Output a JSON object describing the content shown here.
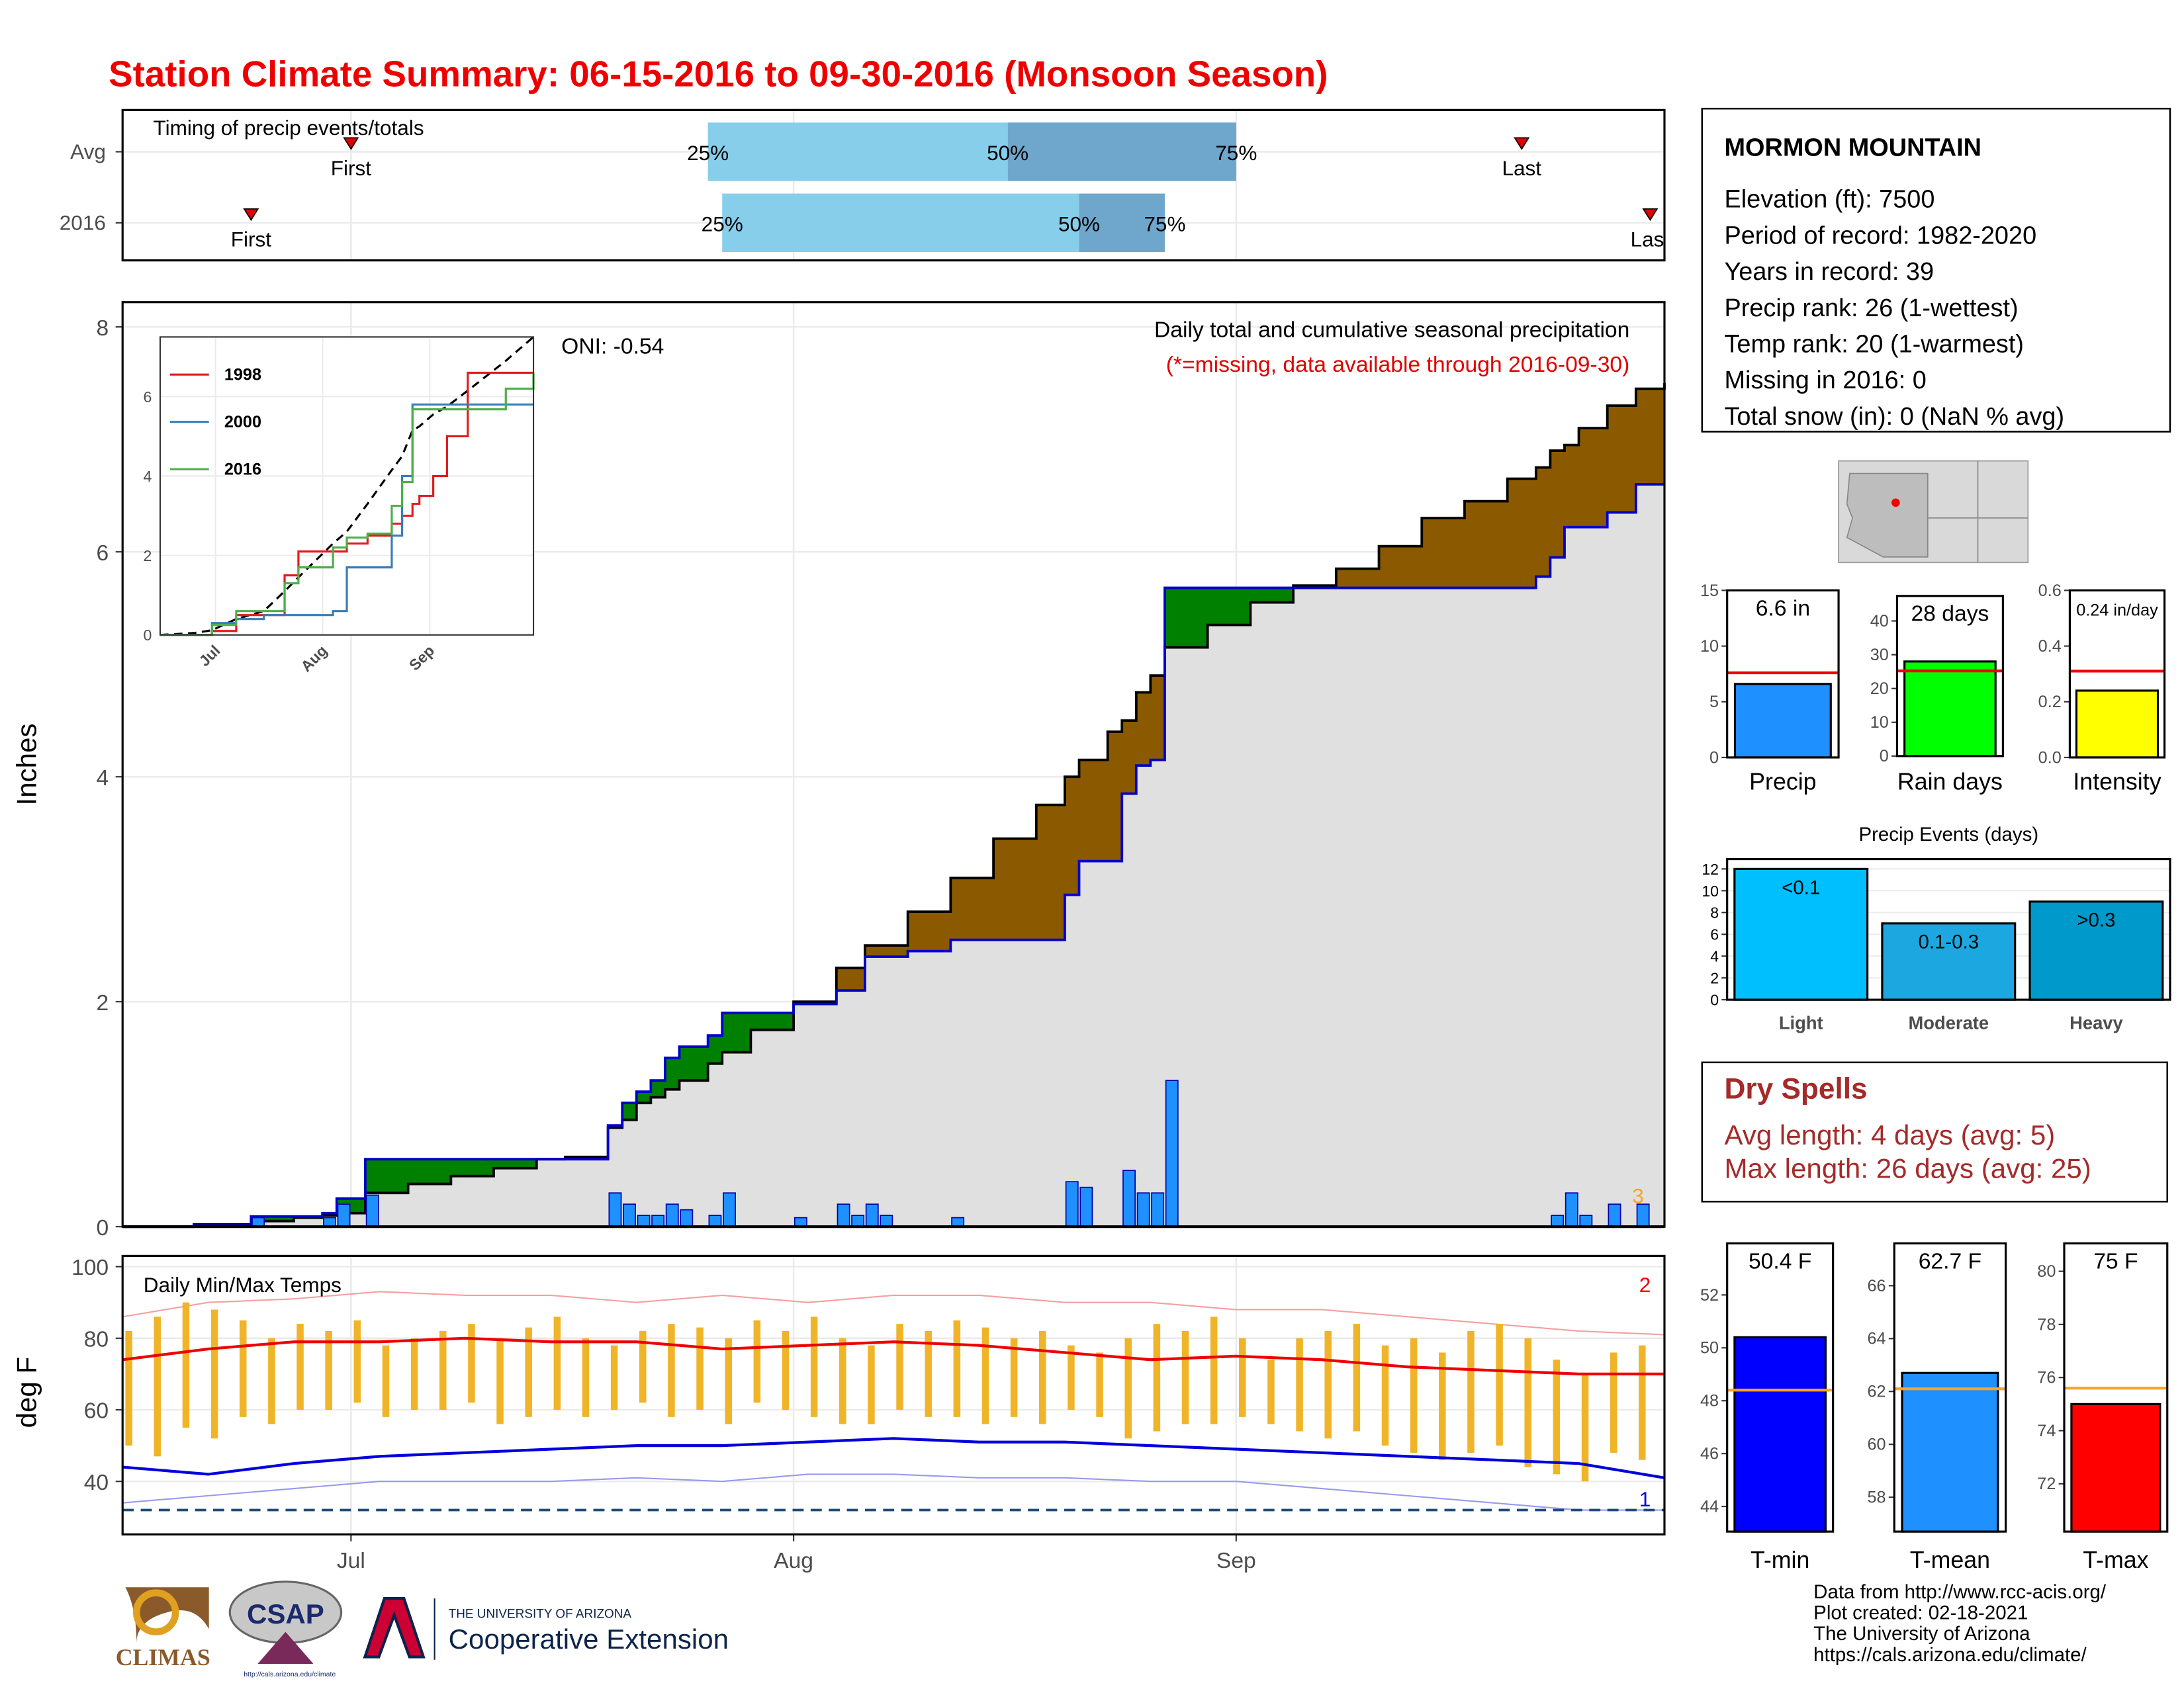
{
  "title": "Station Climate Summary: 06-15-2016 to 09-30-2016 (Monsoon Season)",
  "chart_data": [
    {
      "type": "timing",
      "title": "Timing of precip events/totals",
      "categories": [
        "Avg",
        "2016"
      ],
      "values": [
        [
          16,
          41,
          62,
          78,
          98
        ],
        [
          9,
          42,
          67,
          73,
          107
        ]
      ],
      "marker_labels": [
        "First",
        "25%",
        "50%",
        "75%",
        "Last"
      ],
      "colors": [
        "#87ceeb",
        "#6fa6cc"
      ],
      "marker_color": "#e00000",
      "xlim": [
        0,
        108
      ],
      "xgrid": [
        16,
        47,
        78
      ],
      "grid": true
    },
    {
      "type": "step",
      "title": "Daily total and cumulative seasonal precipitation",
      "subtitle": "(*=missing, data available through 2016-09-30)",
      "ylabel": "Inches",
      "annotation": "ONI: -0.54",
      "count_label": 3,
      "x": [
        0,
        5,
        9,
        12,
        14,
        15,
        17,
        20,
        23,
        26,
        29,
        31,
        34,
        35,
        36,
        37,
        38,
        39,
        41,
        42,
        44,
        47,
        50,
        52,
        55,
        58,
        61,
        64,
        66,
        67,
        69,
        70,
        71,
        72,
        73,
        76,
        79,
        82,
        85,
        88,
        91,
        94,
        97,
        99,
        100,
        101,
        102,
        104,
        106,
        108
      ],
      "values": [
        0,
        0.01,
        0.09,
        0.09,
        0.12,
        0.25,
        0.6,
        0.6,
        0.6,
        0.6,
        0.6,
        0.6,
        0.9,
        1.1,
        1.2,
        1.3,
        1.5,
        1.6,
        1.7,
        1.9,
        1.9,
        1.98,
        2.1,
        2.4,
        2.45,
        2.55,
        2.55,
        2.55,
        2.95,
        3.25,
        3.25,
        3.85,
        4.1,
        4.15,
        5.68,
        5.68,
        5.68,
        5.68,
        5.68,
        5.68,
        5.68,
        5.68,
        5.68,
        5.78,
        5.95,
        6.22,
        6.22,
        6.35,
        6.6,
        6.6
      ],
      "average": [
        0,
        0.02,
        0.05,
        0.08,
        0.1,
        0.12,
        0.3,
        0.38,
        0.45,
        0.52,
        0.6,
        0.62,
        0.88,
        0.95,
        1.1,
        1.15,
        1.22,
        1.3,
        1.45,
        1.55,
        1.75,
        2.0,
        2.3,
        2.5,
        2.8,
        3.1,
        3.45,
        3.75,
        4.0,
        4.15,
        4.4,
        4.5,
        4.75,
        4.9,
        5.15,
        5.35,
        5.55,
        5.7,
        5.85,
        6.05,
        6.3,
        6.45,
        6.65,
        6.75,
        6.9,
        6.95,
        7.1,
        7.3,
        7.45,
        7.5
      ],
      "daily_x": [
        9,
        14,
        15,
        17,
        34,
        35,
        36,
        37,
        38,
        39,
        41,
        42,
        47,
        50,
        51,
        52,
        53,
        58,
        66,
        67,
        70,
        71,
        72,
        73,
        100,
        101,
        102,
        104,
        106
      ],
      "daily": [
        0.08,
        0.08,
        0.2,
        0.28,
        0.3,
        0.2,
        0.1,
        0.1,
        0.2,
        0.15,
        0.1,
        0.3,
        0.08,
        0.2,
        0.1,
        0.2,
        0.1,
        0.08,
        0.4,
        0.35,
        0.5,
        0.3,
        0.3,
        1.3,
        0.1,
        0.3,
        0.1,
        0.2,
        0.2
      ],
      "colors": {
        "above": "#008000",
        "below": "#8b5a00",
        "fill": "#e0e0e0",
        "line": "#0000cc",
        "average": "#000000",
        "bar": "#1e90ff",
        "count": "#f5a623",
        "subtitle": "#e00000"
      },
      "xlim": [
        0,
        108
      ],
      "ylim": [
        0,
        8.22
      ],
      "yticks": [
        0,
        2,
        4,
        6,
        8
      ],
      "xticks": [
        16,
        47,
        78
      ],
      "grid": true
    },
    {
      "type": "line",
      "x": [
        0,
        10,
        15,
        22,
        30,
        36,
        40,
        50,
        54,
        60,
        67,
        70,
        73,
        75,
        79,
        83,
        89,
        100,
        108
      ],
      "series": [
        {
          "name": "1998",
          "color": "#e41a1c",
          "values": [
            0,
            0,
            0.1,
            0.5,
            0.5,
            1.5,
            2.1,
            2.1,
            2.3,
            2.5,
            2.8,
            3.0,
            3.3,
            3.5,
            4.0,
            5.0,
            6.6,
            6.6,
            6.6
          ]
        },
        {
          "name": "2000",
          "color": "#377eb8",
          "values": [
            0,
            0,
            0.3,
            0.4,
            0.5,
            0.5,
            0.5,
            0.6,
            1.7,
            1.7,
            2.5,
            4.0,
            5.8,
            5.8,
            5.8,
            5.8,
            5.8,
            5.8,
            5.8
          ]
        },
        {
          "name": "2016",
          "color": "#4daf4a",
          "values": [
            0,
            0,
            0.25,
            0.6,
            0.6,
            1.3,
            1.7,
            2.2,
            2.45,
            2.55,
            3.25,
            3.85,
            5.68,
            5.68,
            5.68,
            5.68,
            5.68,
            6.2,
            6.6
          ]
        }
      ],
      "average": [
        0,
        0.05,
        0.12,
        0.4,
        0.6,
        1.1,
        1.45,
        2.3,
        2.6,
        3.3,
        4.15,
        4.5,
        5.15,
        5.25,
        5.55,
        5.75,
        6.15,
        6.9,
        7.5
      ],
      "xlim": [
        0,
        108
      ],
      "ylim": [
        0,
        7.5
      ],
      "yticks": [
        0,
        2,
        4,
        6
      ],
      "xticks": [
        {
          "value": 16,
          "label": "Jul"
        },
        {
          "value": 47,
          "label": "Aug"
        },
        {
          "value": 78,
          "label": "Sep"
        }
      ],
      "grid": true
    },
    {
      "type": "range",
      "title": "Daily Min/Max Temps",
      "ylabel": "deg F",
      "x": [
        0,
        2,
        4,
        6,
        8,
        10,
        12,
        14,
        16,
        18,
        20,
        22,
        24,
        26,
        28,
        30,
        32,
        34,
        36,
        38,
        40,
        42,
        44,
        46,
        48,
        50,
        52,
        54,
        56,
        58,
        60,
        62,
        64,
        66,
        68,
        70,
        72,
        74,
        76,
        78,
        80,
        82,
        84,
        86,
        88,
        90,
        92,
        94,
        96,
        98,
        100,
        102,
        104,
        106
      ],
      "highs": [
        82,
        86,
        90,
        88,
        85,
        80,
        84,
        82,
        85,
        78,
        80,
        82,
        84,
        80,
        83,
        86,
        80,
        78,
        82,
        84,
        83,
        80,
        85,
        82,
        86,
        80,
        78,
        84,
        82,
        85,
        83,
        80,
        82,
        78,
        76,
        80,
        84,
        82,
        86,
        80,
        74,
        80,
        82,
        84,
        78,
        80,
        76,
        82,
        84,
        80,
        74,
        70,
        76,
        78
      ],
      "lows": [
        50,
        47,
        55,
        52,
        58,
        56,
        60,
        60,
        62,
        58,
        60,
        60,
        62,
        56,
        58,
        60,
        58,
        60,
        62,
        58,
        60,
        56,
        62,
        60,
        58,
        56,
        56,
        60,
        58,
        58,
        56,
        58,
        56,
        60,
        58,
        52,
        54,
        56,
        56,
        58,
        56,
        54,
        52,
        54,
        50,
        48,
        46,
        48,
        50,
        44,
        42,
        40,
        48,
        46
      ],
      "line_x": [
        0,
        6,
        12,
        18,
        24,
        30,
        36,
        42,
        48,
        54,
        60,
        66,
        72,
        78,
        84,
        90,
        96,
        102,
        108
      ],
      "avg_max": [
        74,
        77,
        79,
        79,
        80,
        79,
        79,
        77,
        78,
        79,
        78,
        76,
        74,
        75,
        74,
        72,
        71,
        70,
        70
      ],
      "avg_min": [
        44,
        42,
        45,
        47,
        48,
        49,
        50,
        50,
        51,
        52,
        51,
        51,
        50,
        49,
        48,
        47,
        46,
        45,
        41
      ],
      "record_max": [
        86,
        90,
        91,
        93,
        92,
        92,
        90,
        92,
        90,
        92,
        92,
        90,
        90,
        88,
        88,
        86,
        84,
        82,
        81
      ],
      "record_min": [
        34,
        36,
        38,
        40,
        40,
        40,
        41,
        40,
        42,
        42,
        41,
        41,
        40,
        40,
        38,
        36,
        34,
        32,
        32
      ],
      "freeze": 32,
      "record_high_count": 2,
      "record_low_count": 1,
      "colors": {
        "bar": "#f0b429",
        "avg_max": "#ee0000",
        "avg_min": "#0000dd",
        "record_max": "#f4a0a0",
        "record_min": "#9999ee",
        "freeze": "#1f4e79"
      },
      "xlim": [
        0,
        108
      ],
      "ylim": [
        25.2,
        103
      ],
      "yticks": [
        40,
        60,
        80,
        100
      ],
      "xticks": [
        {
          "value": 16,
          "label": "Jul"
        },
        {
          "value": 47,
          "label": "Aug"
        },
        {
          "value": 78,
          "label": "Sep"
        }
      ],
      "grid": true
    },
    {
      "type": "bar",
      "categories": [
        "Precip"
      ],
      "values": [
        6.6
      ],
      "value_labels": [
        "6.6 in"
      ],
      "average": 7.6,
      "average_color": "#ee0000",
      "color": "#1e90ff",
      "ylim": [
        0,
        15
      ],
      "yticks": [
        0,
        5,
        10,
        15
      ]
    },
    {
      "type": "bar",
      "categories": [
        "Rain days"
      ],
      "values": [
        28
      ],
      "value_labels": [
        "28 days"
      ],
      "average": 25.2,
      "average_color": "#ee0000",
      "color": "#00ff00",
      "ylim": [
        0,
        47.4
      ],
      "yticks": [
        0,
        10,
        20,
        30,
        40
      ]
    },
    {
      "type": "bar",
      "categories": [
        "Intensity"
      ],
      "values": [
        0.24
      ],
      "value_labels": [
        "0.24 in/day"
      ],
      "average": 0.31,
      "average_color": "#ee0000",
      "color": "#ffff00",
      "ylim": [
        0,
        0.6
      ],
      "yticks": [
        {
          "value": 0,
          "label": "0.0"
        },
        0.2,
        0.4,
        0.6
      ]
    },
    {
      "type": "bar",
      "title": "Precip Events (days)",
      "categories": [
        "Light",
        "Moderate",
        "Heavy"
      ],
      "values": [
        12,
        7,
        9
      ],
      "bar_labels": [
        "<0.1",
        "0.1-0.3",
        ">0.3"
      ],
      "colors": [
        "#00bfff",
        "#1ca7e0",
        "#0099cc"
      ],
      "ylim": [
        0,
        12.9
      ],
      "yticks": [
        0,
        2,
        4,
        6,
        8,
        10,
        12
      ],
      "grid": true
    },
    {
      "type": "bar",
      "categories": [
        "T-min"
      ],
      "values": [
        50.4
      ],
      "value_labels": [
        "50.4 F"
      ],
      "average": 48.4,
      "average_color": "#f5a623",
      "color": "#0000ff",
      "ylim": [
        43.05,
        53.95
      ],
      "yticks": [
        44,
        46,
        48,
        50,
        52
      ]
    },
    {
      "type": "bar",
      "categories": [
        "T-mean"
      ],
      "values": [
        62.7
      ],
      "value_labels": [
        "62.7 F"
      ],
      "average": 62.1,
      "average_color": "#f5a623",
      "color": "#1e90ff",
      "ylim": [
        56.7,
        67.6
      ],
      "yticks": [
        58,
        60,
        62,
        64,
        66
      ]
    },
    {
      "type": "bar",
      "categories": [
        "T-max"
      ],
      "values": [
        75
      ],
      "value_labels": [
        "75 F"
      ],
      "average": 75.6,
      "average_color": "#f5a623",
      "color": "#ff0000",
      "ylim": [
        70.2,
        81.05
      ],
      "yticks": [
        72,
        74,
        76,
        78,
        80
      ]
    }
  ],
  "station": {
    "name": "MORMON MOUNTAIN",
    "lines": [
      "Elevation (ft): 7500",
      "Period of record: 1982-2020",
      "Years in record: 39",
      "Precip rank: 26 (1-wettest)",
      "Temp rank: 20 (1-warmest)",
      "Missing in 2016: 0",
      "Total snow (in): 0 (NaN % avg)"
    ]
  },
  "dry_spells": {
    "title": "Dry Spells",
    "lines": [
      "Avg length: 4 days (avg: 5)",
      "Max length: 26 days (avg: 25)"
    ]
  },
  "footer": {
    "lines": [
      "Data from http://www.rcc-acis.org/",
      "Plot created: 02-18-2021",
      "The University of Arizona",
      "https://cals.arizona.edu/climate/"
    ]
  },
  "logos": {
    "climas": "CLIMAS",
    "csap": "CSAP",
    "csap_url": "http://cals.arizona.edu/climate",
    "university": "THE UNIVERSITY OF ARIZONA",
    "extension": "Cooperative Extension"
  }
}
